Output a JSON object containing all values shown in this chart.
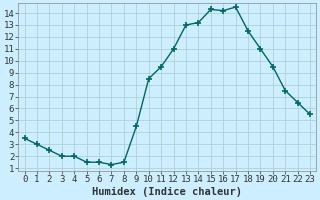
{
  "x": [
    0,
    1,
    2,
    3,
    4,
    5,
    6,
    7,
    8,
    9,
    10,
    11,
    12,
    13,
    14,
    15,
    16,
    17,
    18,
    19,
    20,
    21,
    22,
    23
  ],
  "y": [
    3.5,
    3.0,
    2.5,
    2.0,
    2.0,
    1.5,
    1.5,
    1.3,
    1.5,
    4.5,
    8.5,
    9.5,
    11.0,
    13.0,
    13.2,
    14.3,
    14.2,
    14.5,
    12.5,
    11.0,
    9.5,
    7.5,
    6.5,
    5.5
  ],
  "line_color": "#006666",
  "marker": "+",
  "marker_size": 4,
  "marker_lw": 1.2,
  "xlabel": "Humidex (Indice chaleur)",
  "ylabel": "",
  "xlim": [
    -0.5,
    23.5
  ],
  "ylim": [
    0.8,
    14.8
  ],
  "xticks": [
    0,
    1,
    2,
    3,
    4,
    5,
    6,
    7,
    8,
    9,
    10,
    11,
    12,
    13,
    14,
    15,
    16,
    17,
    18,
    19,
    20,
    21,
    22,
    23
  ],
  "yticks": [
    1,
    2,
    3,
    4,
    5,
    6,
    7,
    8,
    9,
    10,
    11,
    12,
    13,
    14
  ],
  "bg_color": "#cceeff",
  "grid_color": "#aacccc",
  "tick_fontsize": 6.5,
  "xlabel_fontsize": 7.5,
  "linewidth": 1.0
}
